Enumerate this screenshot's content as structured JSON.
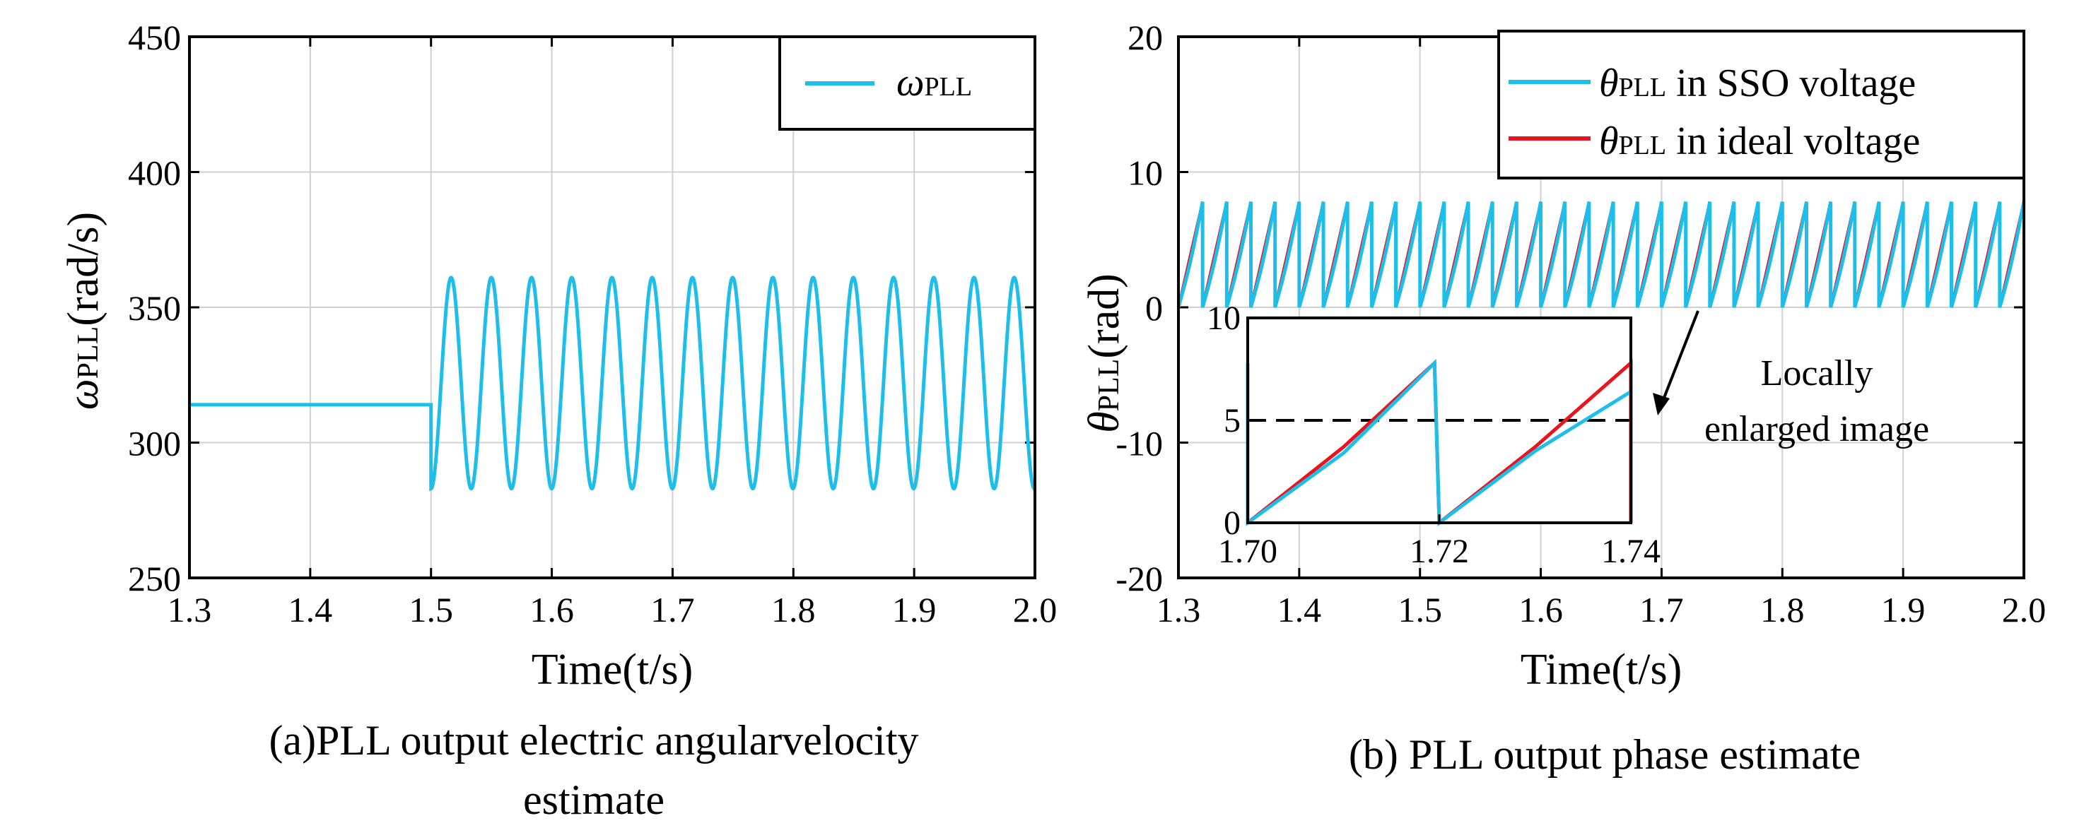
{
  "colors": {
    "cyan": "#1EBEEA",
    "red": "#E8141E",
    "black": "#000000",
    "grid": "#d0d0d0"
  },
  "chart_data": [
    {
      "type": "line",
      "title": "",
      "caption_line1": "(a)PLL output electric angularvelocity",
      "caption_line2": "estimate",
      "xlabel": "Time(t/s)",
      "ylabel_main": "ω",
      "ylabel_sub": "PLL",
      "ylabel_unit": "(rad/s)",
      "xlim": [
        1.3,
        2.0
      ],
      "ylim": [
        250,
        450
      ],
      "xticks": [
        1.3,
        1.4,
        1.5,
        1.6,
        1.7,
        1.8,
        1.9,
        2.0
      ],
      "xtick_labels": [
        "1.3",
        "1.4",
        "1.5",
        "1.6",
        "1.7",
        "1.8",
        "1.9",
        "2.0"
      ],
      "yticks": [
        250,
        300,
        350,
        400,
        450
      ],
      "ytick_labels": [
        "250",
        "300",
        "350",
        "400",
        "450"
      ],
      "grid": true,
      "legend_position": "top-right",
      "series": [
        {
          "name_main": "ω",
          "name_sub": "PLL",
          "color": "#1EBEEA",
          "description": "constant 314 until t=1.5, then oscillation between 283 and 361 with period ~0.0333 s",
          "constant_value": 314,
          "step_time": 1.5,
          "osc_min": 283,
          "osc_max": 361,
          "osc_period": 0.0333
        }
      ]
    },
    {
      "type": "line",
      "title": "",
      "caption": "(b) PLL output phase estimate",
      "xlabel": "Time(t/s)",
      "ylabel_main": "θ",
      "ylabel_sub": "PLL",
      "ylabel_unit": "(rad)",
      "xlim": [
        1.3,
        2.0
      ],
      "ylim": [
        -20,
        20
      ],
      "xticks": [
        1.3,
        1.4,
        1.5,
        1.6,
        1.7,
        1.8,
        1.9,
        2.0
      ],
      "xtick_labels": [
        "1.3",
        "1.4",
        "1.5",
        "1.6",
        "1.7",
        "1.8",
        "1.9",
        "2.0"
      ],
      "yticks": [
        -20,
        -10,
        0,
        10,
        20
      ],
      "ytick_labels": [
        "-20",
        "-10",
        "0",
        "10",
        "20"
      ],
      "grid": true,
      "legend_position": "top-right",
      "series": [
        {
          "name_main": "θ",
          "name_sub": "PLL",
          "name_rest": " in SSO voltage",
          "color": "#1EBEEA"
        },
        {
          "name_main": "θ",
          "name_sub": "PLL",
          "name_rest": " in ideal voltage",
          "color": "#E8141E"
        }
      ],
      "sawtooth_max": 7.8,
      "sawtooth_period": 0.02,
      "annotation": {
        "line1": "Locally",
        "line2": "enlarged image",
        "arrow_from_x": 1.74,
        "arrow_from_y": 0
      },
      "inset": {
        "xlim": [
          1.7,
          1.74
        ],
        "ylim": [
          0,
          10
        ],
        "xticks": [
          1.7,
          1.72,
          1.74
        ],
        "xtick_labels": [
          "1.70",
          "1.72",
          "1.74"
        ],
        "yticks": [
          0,
          5,
          10
        ],
        "ytick_labels": [
          "0",
          "5",
          "10"
        ],
        "reference_line": 5,
        "cyan_points": [
          [
            1.7,
            0
          ],
          [
            1.71,
            3.4
          ],
          [
            1.7195,
            7.8
          ],
          [
            1.72,
            0
          ],
          [
            1.73,
            3.5
          ],
          [
            1.74,
            6.4
          ]
        ],
        "red_points": [
          [
            1.7,
            0
          ],
          [
            1.71,
            3.7
          ],
          [
            1.7195,
            7.8
          ],
          [
            1.72,
            0
          ],
          [
            1.73,
            3.7
          ],
          [
            1.74,
            7.8
          ]
        ]
      }
    }
  ]
}
